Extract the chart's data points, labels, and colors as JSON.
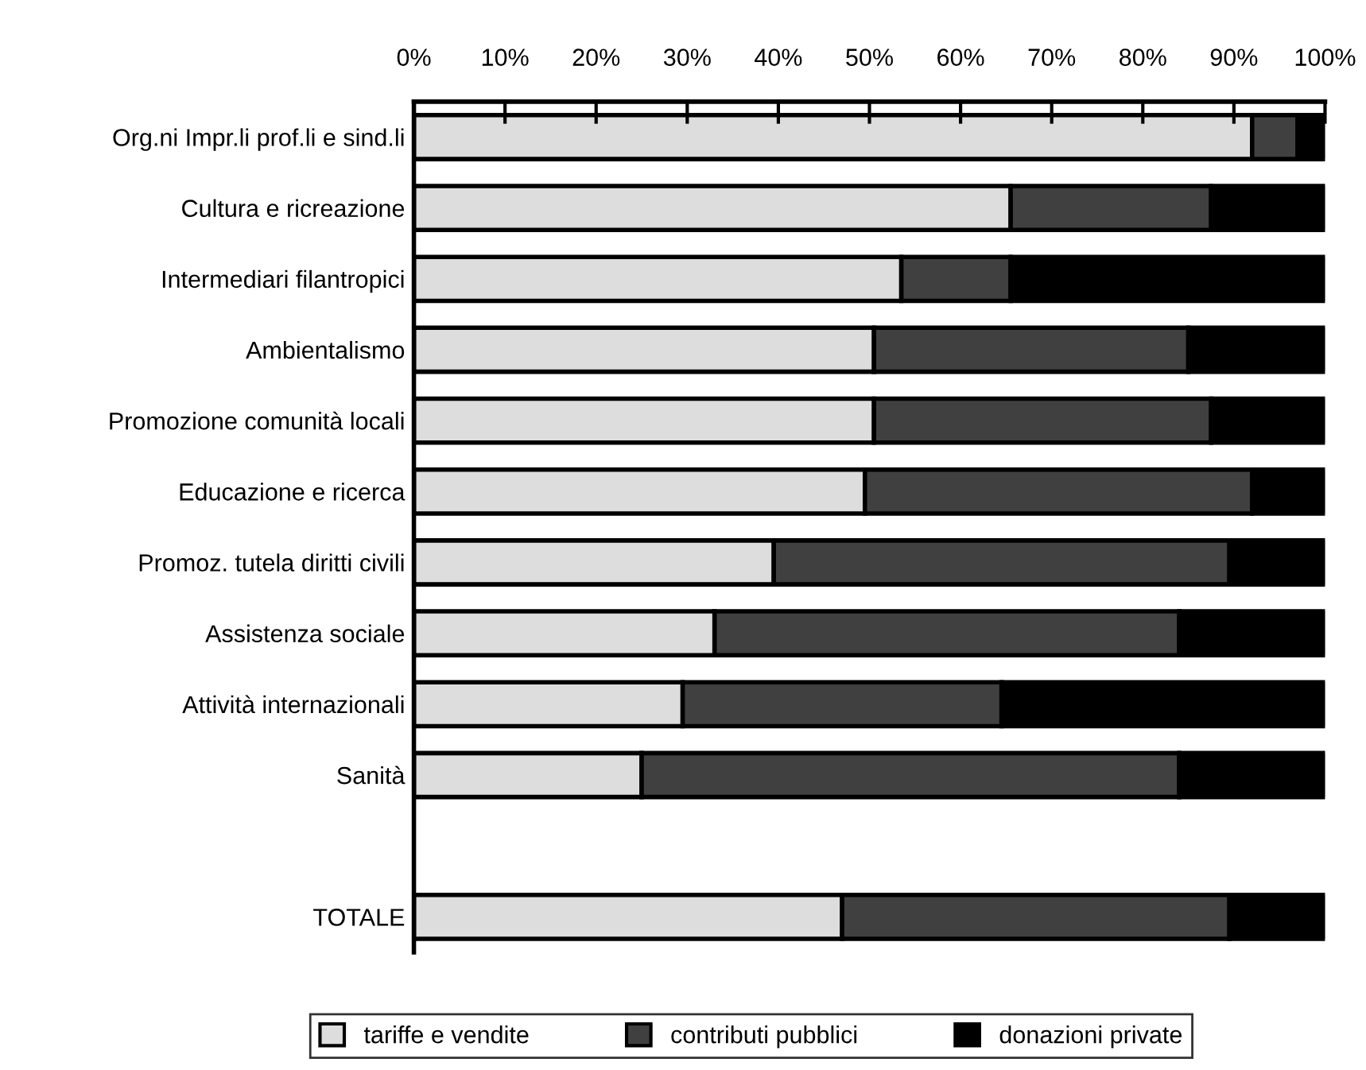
{
  "chart_data": {
    "type": "bar",
    "orientation": "horizontal",
    "stacked": true,
    "categories": [
      "Org.ni Impr.li prof.li e sind.li",
      "Cultura e ricreazione",
      "Intermediari filantropici",
      "Ambientalismo",
      "Promozione comunità locali",
      "Educazione e ricerca",
      "Promoz. tutela diritti civili",
      "Assistenza sociale",
      "Attività internazionali",
      "Sanità",
      null,
      "TOTALE"
    ],
    "series": [
      {
        "name": "tariffe e vendite",
        "color": "#dddddd",
        "values": [
          92,
          65.5,
          53.5,
          50.5,
          50.5,
          49.5,
          39.5,
          33,
          29.5,
          25,
          null,
          47
        ]
      },
      {
        "name": "contributi pubblici",
        "color": "#404040",
        "values": [
          5,
          22,
          12,
          34.5,
          37,
          42.5,
          50,
          51,
          35,
          59,
          null,
          42.5
        ]
      },
      {
        "name": "donazioni private",
        "color": "#000000",
        "values": [
          3,
          12.5,
          34.5,
          15,
          12.5,
          8,
          10.5,
          16,
          35.5,
          16,
          null,
          10.5
        ]
      }
    ],
    "xlim": [
      0,
      100
    ],
    "xticks": [
      {
        "value": 0,
        "label": "0%"
      },
      {
        "value": 10,
        "label": "10%"
      },
      {
        "value": 20,
        "label": "20%"
      },
      {
        "value": 30,
        "label": "30%"
      },
      {
        "value": 40,
        "label": "40%"
      },
      {
        "value": 50,
        "label": "50%"
      },
      {
        "value": 60,
        "label": "60%"
      },
      {
        "value": 70,
        "label": "70%"
      },
      {
        "value": 80,
        "label": "80%"
      },
      {
        "value": 90,
        "label": "90%"
      },
      {
        "value": 100,
        "label": "100%"
      }
    ],
    "grid": false,
    "legend": "bottom"
  }
}
